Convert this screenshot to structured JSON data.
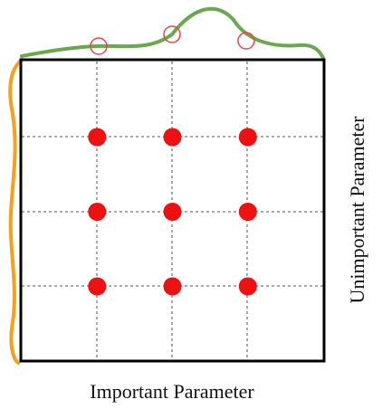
{
  "diagram": {
    "x_axis_label": "Important Parameter",
    "y_axis_label": "Unimportant Parameter",
    "grid_divisions": 3,
    "points": [
      {
        "col": 1,
        "row": 1
      },
      {
        "col": 2,
        "row": 1
      },
      {
        "col": 3,
        "row": 1
      },
      {
        "col": 1,
        "row": 2
      },
      {
        "col": 2,
        "row": 2
      },
      {
        "col": 3,
        "row": 2
      },
      {
        "col": 1,
        "row": 3
      },
      {
        "col": 2,
        "row": 3
      },
      {
        "col": 3,
        "row": 3
      }
    ],
    "colors": {
      "frame": "#000000",
      "grid_lines": "#555555",
      "points": "#ee1111",
      "top_curve": "#6aa84f",
      "left_curve": "#f5a11a",
      "sample_markers": "#ee4444"
    }
  }
}
